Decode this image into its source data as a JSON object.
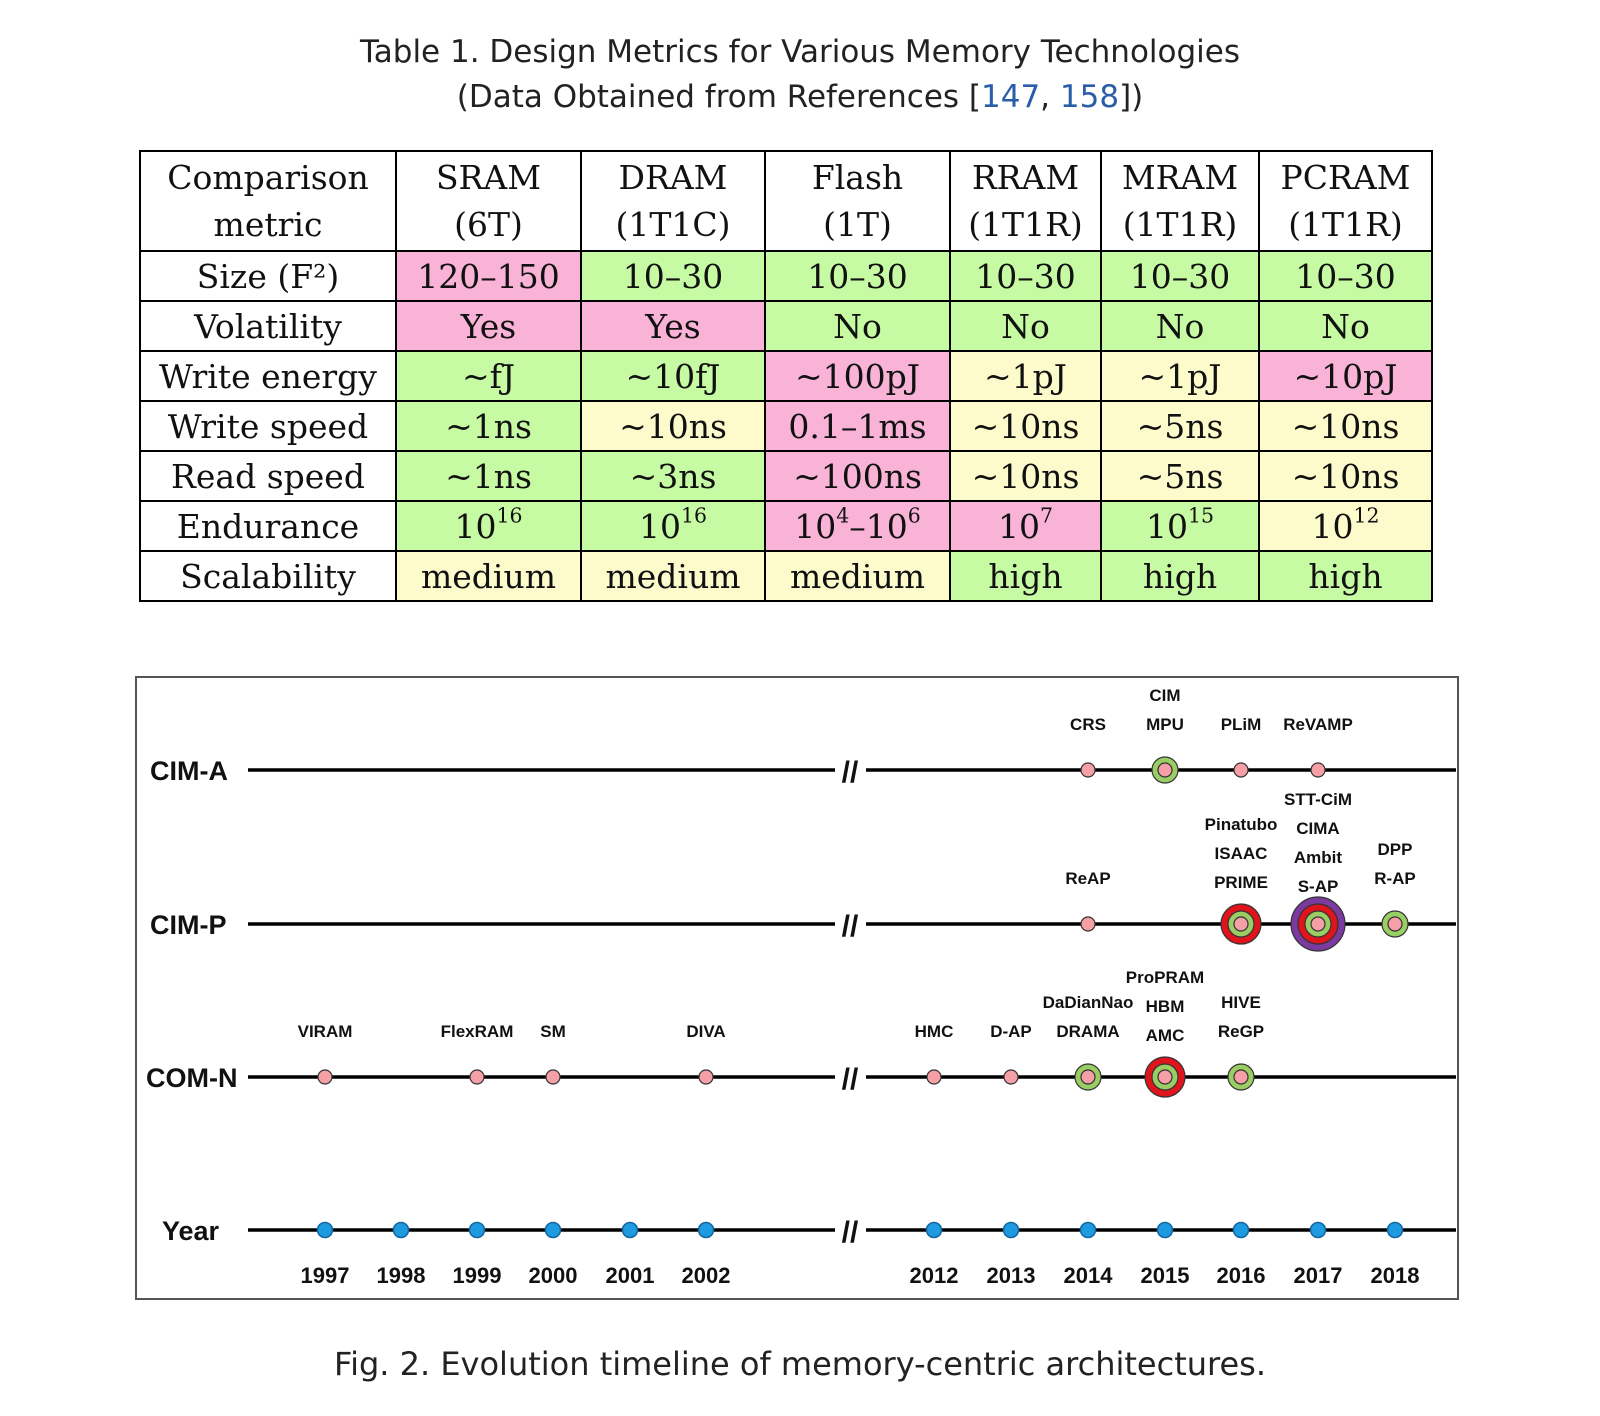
{
  "table": {
    "caption_line1": "Table 1.  Design Metrics for Various Memory Technologies",
    "caption_line2_prefix": "(Data Obtained from References [",
    "ref1": "147",
    "ref_sep": ", ",
    "ref2": "158",
    "caption_line2_suffix": "])",
    "headers": [
      {
        "l1": "Comparison",
        "l2": "metric"
      },
      {
        "l1": "SRAM",
        "l2": "(6T)"
      },
      {
        "l1": "DRAM",
        "l2": "(1T1C)"
      },
      {
        "l1": "Flash",
        "l2": "(1T)"
      },
      {
        "l1": "RRAM",
        "l2": "(1T1R)"
      },
      {
        "l1": "MRAM",
        "l2": "(1T1R)"
      },
      {
        "l1": "PCRAM",
        "l2": "(1T1R)"
      }
    ],
    "rows": [
      {
        "metric": "Size (F²)",
        "cells": [
          {
            "text": "120–150",
            "color": "pink"
          },
          {
            "text": "10–30",
            "color": "green"
          },
          {
            "text": "10–30",
            "color": "green"
          },
          {
            "text": "10–30",
            "color": "green"
          },
          {
            "text": "10–30",
            "color": "green"
          },
          {
            "text": "10–30",
            "color": "green"
          }
        ]
      },
      {
        "metric": "Volatility",
        "cells": [
          {
            "text": "Yes",
            "color": "pink"
          },
          {
            "text": "Yes",
            "color": "pink"
          },
          {
            "text": "No",
            "color": "green"
          },
          {
            "text": "No",
            "color": "green"
          },
          {
            "text": "No",
            "color": "green"
          },
          {
            "text": "No",
            "color": "green"
          }
        ]
      },
      {
        "metric": "Write energy",
        "cells": [
          {
            "text": "~fJ",
            "color": "green"
          },
          {
            "text": "~10fJ",
            "color": "green"
          },
          {
            "text": "~100pJ",
            "color": "pink"
          },
          {
            "text": "~1pJ",
            "color": "yellow"
          },
          {
            "text": "~1pJ",
            "color": "yellow"
          },
          {
            "text": "~10pJ",
            "color": "pink"
          }
        ]
      },
      {
        "metric": "Write speed",
        "cells": [
          {
            "text": "~1ns",
            "color": "green"
          },
          {
            "text": "~10ns",
            "color": "yellow"
          },
          {
            "text": "0.1–1ms",
            "color": "pink"
          },
          {
            "text": "~10ns",
            "color": "yellow"
          },
          {
            "text": "~5ns",
            "color": "yellow"
          },
          {
            "text": "~10ns",
            "color": "yellow"
          }
        ]
      },
      {
        "metric": "Read speed",
        "cells": [
          {
            "text": "~1ns",
            "color": "green"
          },
          {
            "text": "~3ns",
            "color": "green"
          },
          {
            "text": "~100ns",
            "color": "pink"
          },
          {
            "text": "~10ns",
            "color": "yellow"
          },
          {
            "text": "~5ns",
            "color": "yellow"
          },
          {
            "text": "~10ns",
            "color": "yellow"
          }
        ]
      },
      {
        "metric": "Endurance",
        "cells": [
          {
            "base": "10",
            "exp": "16",
            "color": "green"
          },
          {
            "base": "10",
            "exp": "16",
            "color": "green"
          },
          {
            "base": "10",
            "exp": "4",
            "dash": "–",
            "base2": "10",
            "exp2": "6",
            "color": "pink"
          },
          {
            "base": "10",
            "exp": "7",
            "color": "pink"
          },
          {
            "base": "10",
            "exp": "15",
            "color": "green"
          },
          {
            "base": "10",
            "exp": "12",
            "color": "yellow"
          }
        ]
      },
      {
        "metric": "Scalability",
        "cells": [
          {
            "text": "medium",
            "color": "yellow"
          },
          {
            "text": "medium",
            "color": "yellow"
          },
          {
            "text": "medium",
            "color": "yellow"
          },
          {
            "text": "high",
            "color": "green"
          },
          {
            "text": "high",
            "color": "green"
          },
          {
            "text": "high",
            "color": "green"
          }
        ]
      }
    ]
  },
  "timeline": {
    "rows": [
      "CIM-A",
      "CIM-P",
      "COM-N",
      "Year"
    ],
    "break_mark": "//",
    "years": [
      "1997",
      "1998",
      "1999",
      "2000",
      "2001",
      "2002",
      "2012",
      "2013",
      "2014",
      "2015",
      "2016",
      "2017",
      "2018"
    ],
    "events": [
      {
        "row": "CIM-A",
        "year": "2014",
        "names": [
          "CRS"
        ],
        "marker": "pink"
      },
      {
        "row": "CIM-A",
        "year": "2015",
        "names": [
          "CIM",
          "MPU"
        ],
        "marker": "green"
      },
      {
        "row": "CIM-A",
        "year": "2016",
        "names": [
          "PLiM"
        ],
        "marker": "pink"
      },
      {
        "row": "CIM-A",
        "year": "2017",
        "names": [
          "ReVAMP"
        ],
        "marker": "pink"
      },
      {
        "row": "CIM-P",
        "year": "2014",
        "names": [
          "ReAP"
        ],
        "marker": "pink"
      },
      {
        "row": "CIM-P",
        "year": "2016",
        "names": [
          "Pinatubo",
          "ISAAC",
          "PRIME"
        ],
        "marker": "red"
      },
      {
        "row": "CIM-P",
        "year": "2017",
        "names": [
          "STT-CiM",
          "CIMA",
          "Ambit",
          "S-AP"
        ],
        "marker": "purple"
      },
      {
        "row": "CIM-P",
        "year": "2018",
        "names": [
          "DPP",
          "R-AP"
        ],
        "marker": "green"
      },
      {
        "row": "COM-N",
        "year": "1997",
        "names": [
          "VIRAM"
        ],
        "marker": "pink"
      },
      {
        "row": "COM-N",
        "year": "1999",
        "names": [
          "FlexRAM"
        ],
        "marker": "pink"
      },
      {
        "row": "COM-N",
        "year": "2000",
        "names": [
          "SM"
        ],
        "marker": "pink"
      },
      {
        "row": "COM-N",
        "year": "2002",
        "names": [
          "DIVA"
        ],
        "marker": "pink"
      },
      {
        "row": "COM-N",
        "year": "2012",
        "names": [
          "HMC"
        ],
        "marker": "pink"
      },
      {
        "row": "COM-N",
        "year": "2013",
        "names": [
          "D-AP"
        ],
        "marker": "pink"
      },
      {
        "row": "COM-N",
        "year": "2014",
        "names": [
          "DaDianNao",
          "DRAMA"
        ],
        "marker": "green"
      },
      {
        "row": "COM-N",
        "year": "2015",
        "names": [
          "ProPRAM",
          "HBM",
          "AMC"
        ],
        "marker": "red"
      },
      {
        "row": "COM-N",
        "year": "2016",
        "names": [
          "HIVE",
          "ReGP"
        ],
        "marker": "green"
      }
    ],
    "colors": {
      "pink": "#f4a0a6",
      "green": "#9acd63",
      "red": "#e0141c",
      "purple": "#7a3aa0",
      "year_dot": "#1e9be0"
    }
  },
  "figure": {
    "caption": "Fig. 2.  Evolution timeline of memory-centric architectures."
  }
}
